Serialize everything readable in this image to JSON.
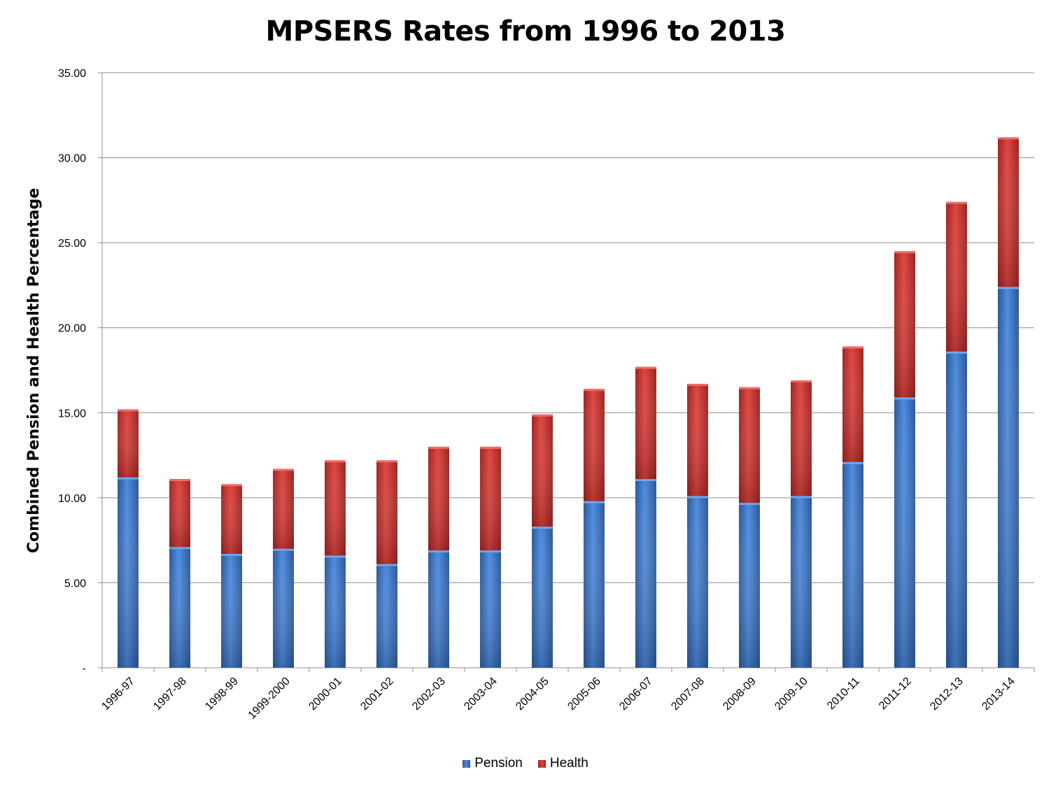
{
  "chart_data": {
    "type": "bar",
    "stacked": true,
    "title": "MPSERS Rates from 1996 to 2013",
    "xlabel": "",
    "ylabel": "Combined Pension and Health Percentage",
    "ylim": [
      0,
      35
    ],
    "yticks": [
      "-",
      "5.00",
      "10.00",
      "15.00",
      "20.00",
      "25.00",
      "30.00",
      "35.00"
    ],
    "grid": true,
    "legend_position": "bottom",
    "categories": [
      "1996-97",
      "1997-98",
      "1998-99",
      "1999-2000",
      "2000-01",
      "2001-02",
      "2002-03",
      "2003-04",
      "2004-05",
      "2005-06",
      "2006-07",
      "2007-08",
      "2008-09",
      "2009-10",
      "2010-11",
      "2011-12",
      "2012-13",
      "2013-14"
    ],
    "series": [
      {
        "name": "Pension",
        "color": "#3a74c4",
        "values": [
          11.2,
          7.1,
          6.7,
          7.0,
          6.6,
          6.1,
          6.9,
          6.9,
          8.3,
          9.8,
          11.1,
          10.1,
          9.7,
          10.1,
          12.1,
          15.9,
          18.6,
          22.4
        ]
      },
      {
        "name": "Health",
        "color": "#c6332f",
        "values": [
          4.0,
          4.0,
          4.1,
          4.7,
          5.6,
          6.1,
          6.1,
          6.1,
          6.6,
          6.6,
          6.6,
          6.6,
          6.8,
          6.8,
          6.8,
          8.6,
          8.8,
          8.8
        ]
      }
    ]
  }
}
